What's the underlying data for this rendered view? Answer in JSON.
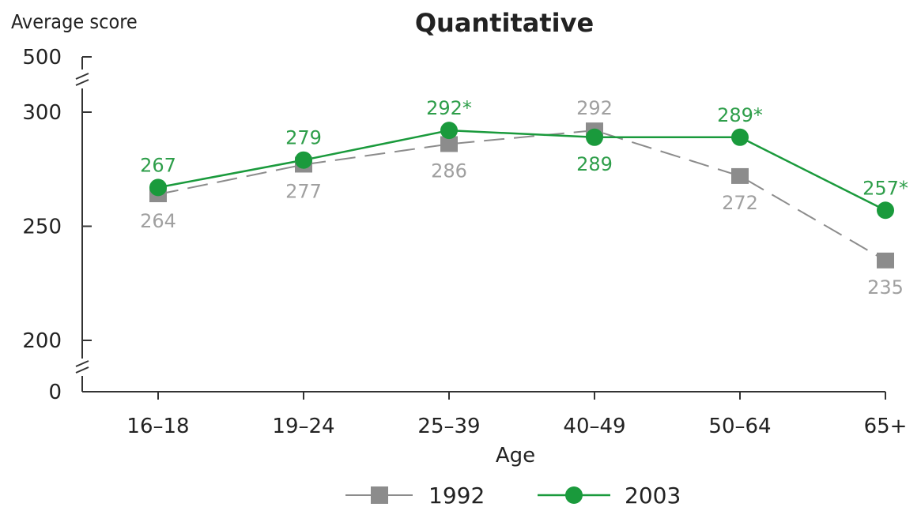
{
  "chart_data": {
    "type": "line",
    "title": "Quantitative",
    "ylabel": "Average score",
    "xlabel": "Age",
    "categories": [
      "16–18",
      "19–24",
      "25–39",
      "40–49",
      "50–64",
      "65+"
    ],
    "y_ticks": [
      "0",
      "200",
      "250",
      "300",
      "500"
    ],
    "axis_breaks": [
      "between 0 and 200",
      "between 300 and 500"
    ],
    "ylim": [
      200,
      300
    ],
    "grid": false,
    "legend_position": "bottom-center",
    "series": [
      {
        "name": "1992",
        "values": [
          264,
          277,
          286,
          292,
          272,
          235
        ],
        "labels": [
          "264",
          "277",
          "286",
          "292",
          "272",
          "235"
        ],
        "label_positions": [
          "below",
          "below",
          "below",
          "above",
          "below",
          "below"
        ],
        "marker": "square",
        "line_style": "dashed",
        "color": "#8c8c8c",
        "label_color": "#a0a0a0"
      },
      {
        "name": "2003",
        "values": [
          267,
          279,
          292,
          289,
          289,
          257
        ],
        "labels": [
          "267",
          "279",
          "292*",
          "289",
          "289*",
          "257*"
        ],
        "label_positions": [
          "above",
          "above",
          "above",
          "below",
          "above",
          "above"
        ],
        "marker": "circle",
        "line_style": "solid",
        "color": "#1a9a3c",
        "label_color": "#2e9e4a"
      }
    ]
  }
}
